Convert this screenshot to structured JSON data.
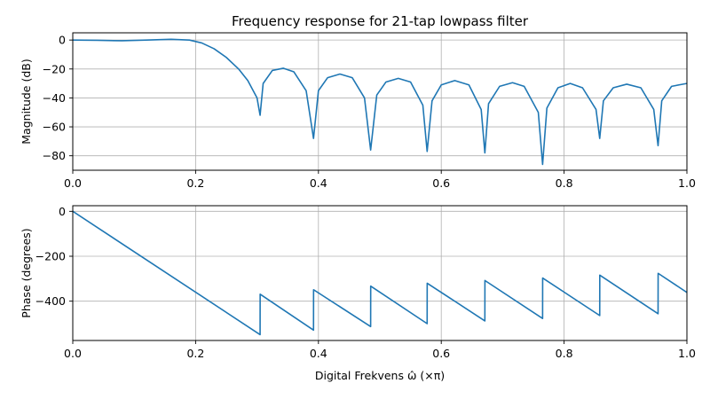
{
  "chart_data": [
    {
      "type": "line",
      "title": "Frequency response for 21-tap lowpass filter",
      "xlabel": "",
      "ylabel": "Magnitude (dB)",
      "xlim": [
        0,
        1
      ],
      "ylim": [
        -90,
        5
      ],
      "xticks": [
        0,
        0.2,
        0.4,
        0.6,
        0.8,
        1.0
      ],
      "xtick_labels": [
        "0.0",
        "0.2",
        "0.4",
        "0.6",
        "0.8",
        "1.0"
      ],
      "yticks": [
        0,
        -20,
        -40,
        -60,
        -80
      ],
      "ytick_labels": [
        "0",
        "−20",
        "−40",
        "−60",
        "−80"
      ],
      "grid": true,
      "color": "#1f77b4",
      "series": [
        {
          "x": [
            0,
            0.04,
            0.08,
            0.12,
            0.16,
            0.19,
            0.21,
            0.23,
            0.25,
            0.27,
            0.285,
            0.3,
            0.305,
            0.31,
            0.325,
            0.343,
            0.36,
            0.38,
            0.392,
            0.4,
            0.415,
            0.435,
            0.455,
            0.475,
            0.485,
            0.495,
            0.51,
            0.53,
            0.55,
            0.57,
            0.577,
            0.585,
            0.6,
            0.622,
            0.645,
            0.665,
            0.671,
            0.677,
            0.695,
            0.716,
            0.735,
            0.758,
            0.765,
            0.772,
            0.79,
            0.81,
            0.83,
            0.852,
            0.858,
            0.864,
            0.88,
            0.902,
            0.925,
            0.946,
            0.953,
            0.959,
            0.975,
            1.0
          ],
          "y": [
            0,
            -0.2,
            -0.5,
            0,
            0.5,
            0,
            -2,
            -6,
            -12,
            -20,
            -28,
            -40,
            -52,
            -30,
            -21,
            -19.5,
            -22,
            -35,
            -68,
            -35,
            -26,
            -23.5,
            -26,
            -40,
            -76,
            -38,
            -29,
            -26.5,
            -29,
            -45,
            -77,
            -42,
            -31,
            -28,
            -31,
            -48,
            -78,
            -44,
            -32,
            -29.5,
            -32,
            -50,
            -86,
            -47,
            -33,
            -30,
            -33,
            -48,
            -68,
            -42,
            -33,
            -30.5,
            -33,
            -48,
            -73,
            -42,
            -32,
            -30
          ]
        }
      ]
    },
    {
      "type": "line",
      "title": "",
      "xlabel": "Digital Frekvens ω̂ (×π)",
      "ylabel": "Phase (degrees)",
      "xlim": [
        0,
        1
      ],
      "ylim": [
        -575,
        25
      ],
      "xticks": [
        0,
        0.2,
        0.4,
        0.6,
        0.8,
        1.0
      ],
      "xtick_labels": [
        "0.0",
        "0.2",
        "0.4",
        "0.6",
        "0.8",
        "1.0"
      ],
      "yticks": [
        0,
        -200,
        -400
      ],
      "ytick_labels": [
        "0",
        "−200",
        "−400"
      ],
      "grid": true,
      "color": "#1f77b4",
      "series": [
        {
          "x": [
            0,
            0.305,
            0.3051,
            0.392,
            0.3921,
            0.485,
            0.4851,
            0.577,
            0.5771,
            0.671,
            0.6711,
            0.765,
            0.7651,
            0.858,
            0.8581,
            0.953,
            0.9531,
            1.0
          ],
          "y": [
            0,
            -549,
            -369,
            -529,
            -349,
            -513,
            -333,
            -500,
            -320,
            -488,
            -308,
            -477,
            -297,
            -464,
            -284,
            -456,
            -276,
            -361
          ]
        }
      ]
    }
  ]
}
